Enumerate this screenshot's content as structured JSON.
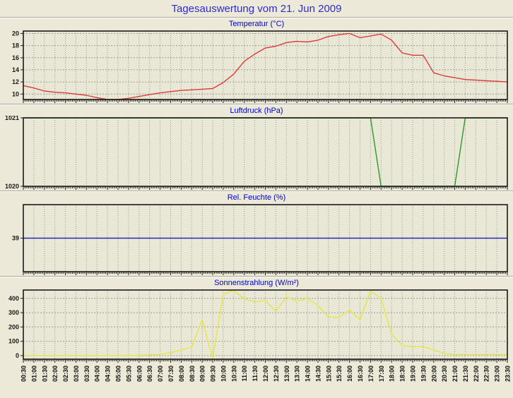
{
  "page": {
    "title": "Tagesauswertung vom 21. Jun 2009"
  },
  "colors": {
    "page_background": "#ece9d8",
    "plot_background": "#e9e8d6",
    "plot_border": "#1a1a1a",
    "gridline": "#9a9a90",
    "title_blue": "#2d2dcb",
    "chart_title_blue": "#0000cc",
    "temperature_line": "#dd3a3a",
    "pressure_line": "#2b9b2b",
    "humidity_line": "#2626b8",
    "radiation_line": "#e6e645"
  },
  "x_axis": {
    "start": "00:30",
    "end": "23:30",
    "step_minutes": 30,
    "n_points": 47
  },
  "chart_data": [
    {
      "type": "line",
      "title": "Temperatur (°C)",
      "color": "#dd3a3a",
      "ylim": [
        9.1,
        20.4
      ],
      "yticks": [
        20,
        18,
        16,
        14,
        12,
        10
      ],
      "grid": true,
      "values": [
        11.4,
        11.0,
        10.5,
        10.3,
        10.2,
        10.0,
        9.8,
        9.4,
        9.1,
        9.1,
        9.3,
        9.6,
        9.9,
        10.2,
        10.4,
        10.6,
        10.7,
        10.8,
        10.9,
        11.9,
        13.3,
        15.4,
        16.6,
        17.6,
        17.9,
        18.5,
        18.7,
        18.6,
        18.9,
        19.5,
        19.8,
        20.0,
        19.3,
        19.6,
        19.9,
        18.9,
        16.8,
        16.4,
        16.4,
        13.5,
        13.0,
        12.7,
        12.4,
        12.3,
        12.2,
        12.1,
        12.0
      ]
    },
    {
      "type": "line",
      "title": "Luftdruck (hPa)",
      "color": "#2b9b2b",
      "ylim": [
        1020,
        1021
      ],
      "yticks": [
        1021,
        1020
      ],
      "grid": true,
      "values": [
        1021,
        1021,
        1021,
        1021,
        1021,
        1021,
        1021,
        1021,
        1021,
        1021,
        1021,
        1021,
        1021,
        1021,
        1021,
        1021,
        1021,
        1021,
        1021,
        1021,
        1021,
        1021,
        1021,
        1021,
        1021,
        1021,
        1021,
        1021,
        1021,
        1021,
        1021,
        1021,
        1021,
        1021,
        1020,
        1020,
        1020,
        1020,
        1020,
        1020,
        1020,
        1020,
        1021,
        1021,
        1021,
        1021,
        1021
      ]
    },
    {
      "type": "line",
      "title": "Rel. Feuchte (%)",
      "color": "#2626b8",
      "ylim": [
        29,
        49
      ],
      "yticks": [
        39
      ],
      "grid": true,
      "values": [
        39,
        39,
        39,
        39,
        39,
        39,
        39,
        39,
        39,
        39,
        39,
        39,
        39,
        39,
        39,
        39,
        39,
        39,
        39,
        39,
        39,
        39,
        39,
        39,
        39,
        39,
        39,
        39,
        39,
        39,
        39,
        39,
        39,
        39,
        39,
        39,
        39,
        39,
        39,
        39,
        39,
        39,
        39,
        39,
        39,
        39,
        39
      ]
    },
    {
      "type": "line",
      "title": "Sonnenstrahlung (W/m²)",
      "color": "#e6e645",
      "ylim": [
        -25,
        458
      ],
      "yticks": [
        400,
        300,
        200,
        100,
        0
      ],
      "grid": true,
      "x_tick_labels": [
        "00:30",
        "01:00",
        "01:30",
        "02:00",
        "02:30",
        "03:00",
        "03:30",
        "04:00",
        "04:30",
        "05:00",
        "05:30",
        "06:00",
        "06:30",
        "07:00",
        "07:30",
        "08:00",
        "08:30",
        "09:00",
        "09:30",
        "10:00",
        "10:30",
        "11:00",
        "11:30",
        "12:00",
        "12:30",
        "13:00",
        "13:30",
        "14:00",
        "14:30",
        "15:00",
        "15:30",
        "16:00",
        "16:30",
        "17:00",
        "17:30",
        "18:00",
        "18:30",
        "19:00",
        "19:30",
        "20:00",
        "20:30",
        "21:00",
        "21:30",
        "22:00",
        "22:30",
        "23:00",
        "23:30"
      ],
      "values": [
        0,
        0,
        0,
        0,
        0,
        0,
        0,
        0,
        0,
        0,
        0,
        2,
        5,
        10,
        20,
        40,
        60,
        250,
        -20,
        430,
        455,
        395,
        375,
        385,
        310,
        410,
        380,
        400,
        350,
        270,
        265,
        320,
        250,
        450,
        400,
        150,
        70,
        62,
        62,
        40,
        15,
        8,
        8,
        8,
        8,
        8,
        8
      ]
    }
  ]
}
